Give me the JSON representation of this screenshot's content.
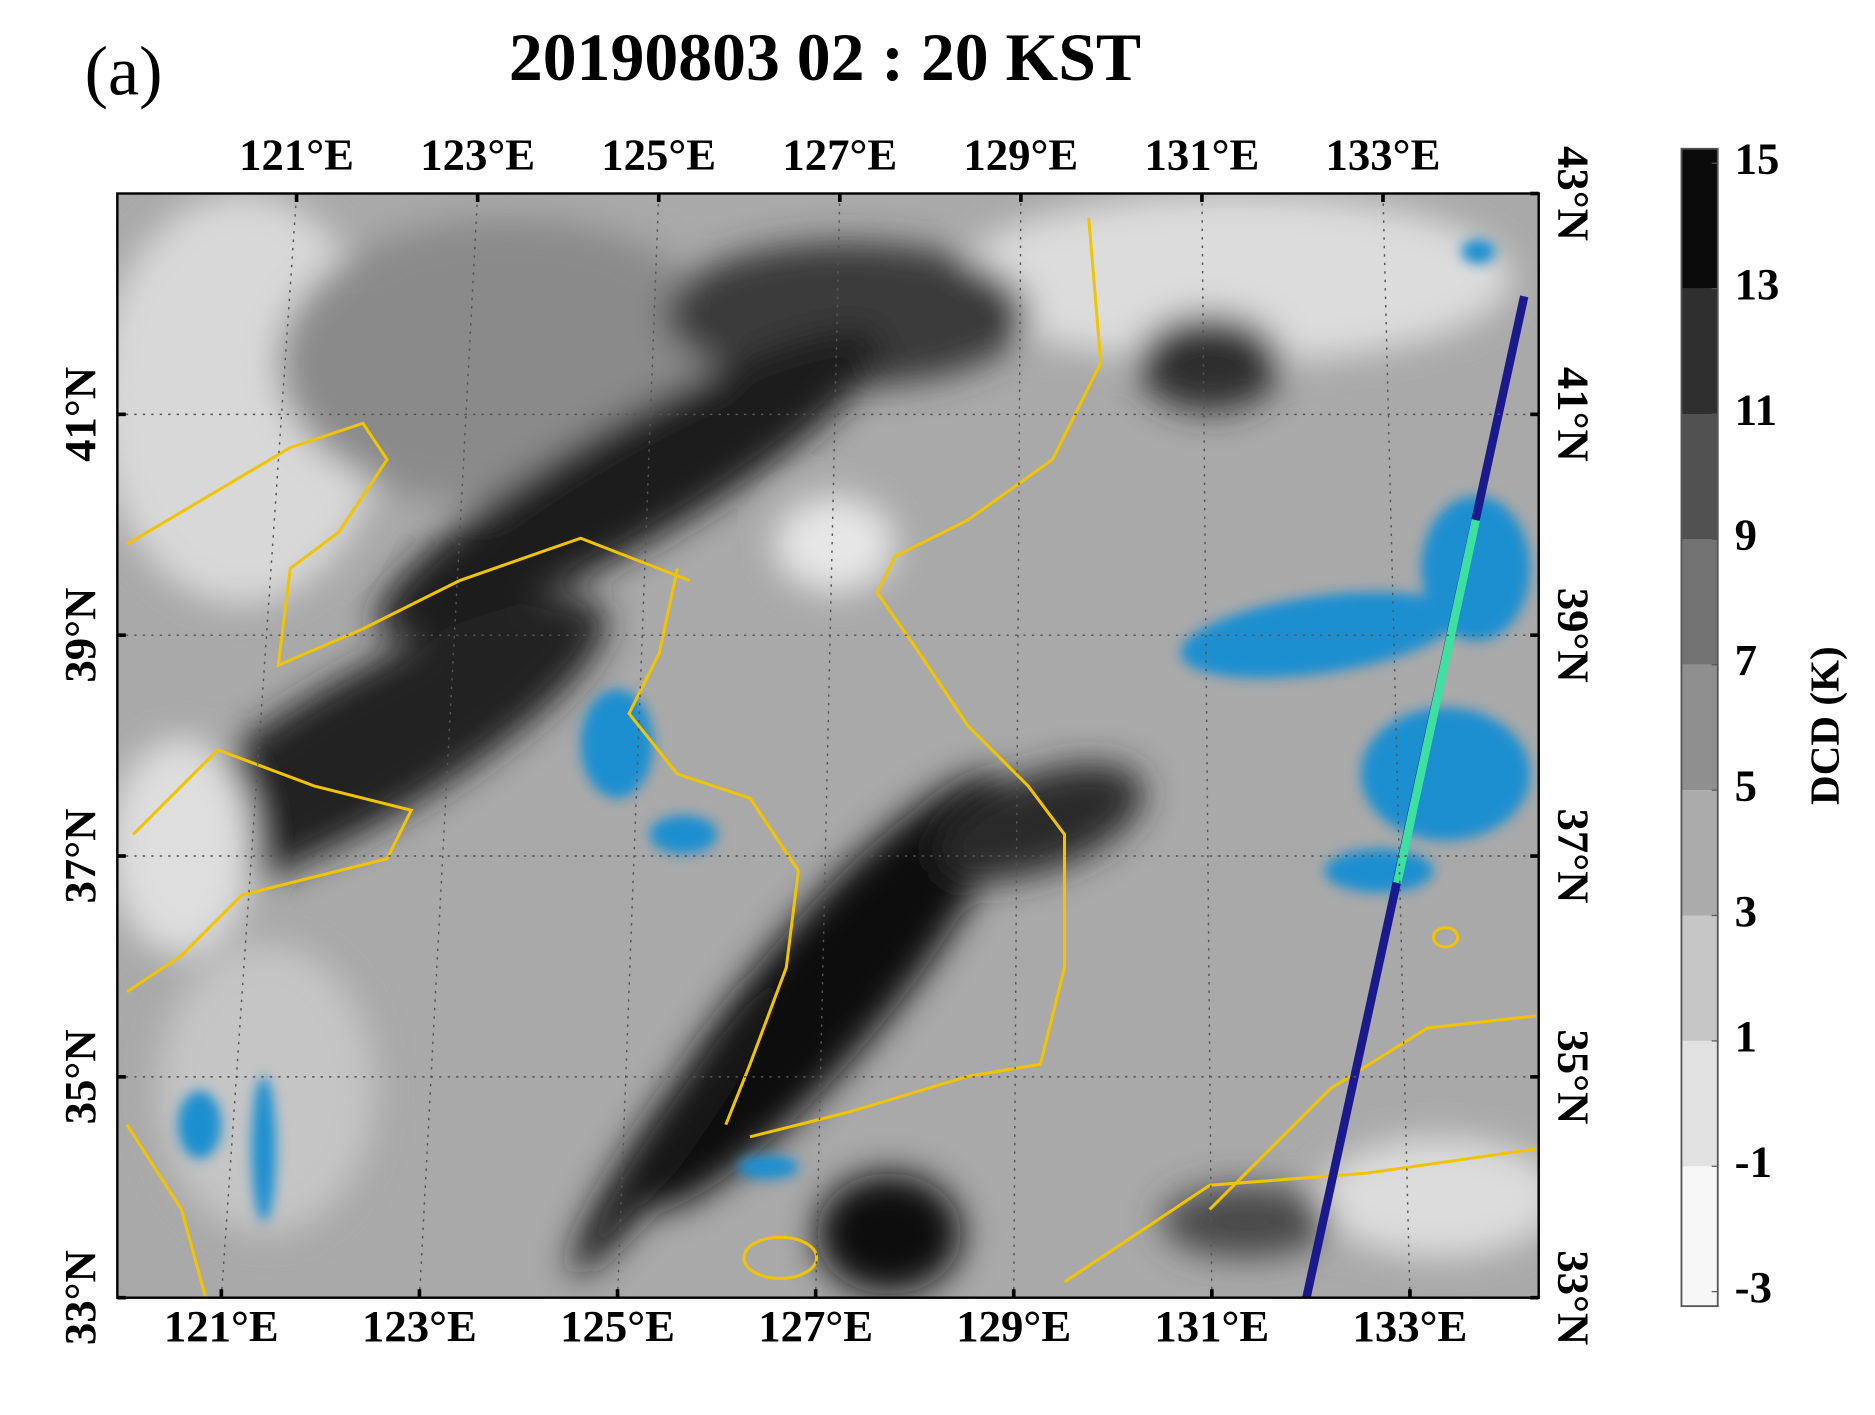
{
  "panel_label": "(a)",
  "title": "20190803 02 : 20 KST",
  "map": {
    "bottom_xlim": [
      119.95,
      134.3
    ],
    "top_xlim": [
      119.02,
      134.72
    ],
    "ylim": [
      33,
      43
    ],
    "bottom_xticks": [
      {
        "value": 121,
        "label": "121°E"
      },
      {
        "value": 123,
        "label": "123°E"
      },
      {
        "value": 125,
        "label": "125°E"
      },
      {
        "value": 127,
        "label": "127°E"
      },
      {
        "value": 129,
        "label": "129°E"
      },
      {
        "value": 131,
        "label": "131°E"
      },
      {
        "value": 133,
        "label": "133°E"
      }
    ],
    "top_xticks": [
      {
        "value": 121,
        "label": "121°E"
      },
      {
        "value": 123,
        "label": "123°E"
      },
      {
        "value": 125,
        "label": "125°E"
      },
      {
        "value": 127,
        "label": "127°E"
      },
      {
        "value": 129,
        "label": "129°E"
      },
      {
        "value": 131,
        "label": "131°E"
      },
      {
        "value": 133,
        "label": "133°E"
      }
    ],
    "left_yticks": [
      {
        "value": 33,
        "label": "33°N"
      },
      {
        "value": 35,
        "label": "35°N"
      },
      {
        "value": 37,
        "label": "37°N"
      },
      {
        "value": 39,
        "label": "39°N"
      },
      {
        "value": 41,
        "label": "41°N"
      }
    ],
    "right_yticks": [
      {
        "value": 33,
        "label": "33°N"
      },
      {
        "value": 35,
        "label": "35°N"
      },
      {
        "value": 37,
        "label": "37°N"
      },
      {
        "value": 39,
        "label": "39°N"
      },
      {
        "value": 41,
        "label": "41°N"
      },
      {
        "value": 43,
        "label": "43°N"
      }
    ],
    "grid": true
  },
  "colorbar": {
    "label": "DCD (K)",
    "ticks": [
      -3,
      -1,
      1,
      3,
      5,
      7,
      9,
      11,
      13,
      15
    ],
    "colors": [
      "#f7f7f7",
      "#e2e2e2",
      "#c6c6c6",
      "#ababab",
      "#8f8f8f",
      "#727272",
      "#515151",
      "#2f2f2f",
      "#0b0b0b"
    ]
  }
}
